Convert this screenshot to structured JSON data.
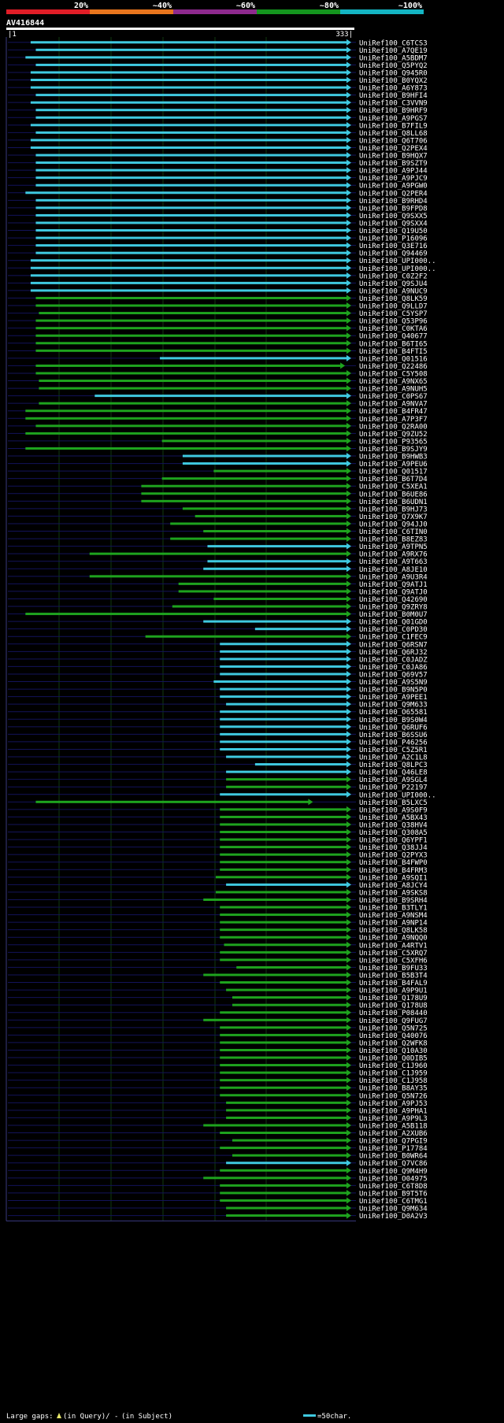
{
  "chart_data": {
    "type": "alignment-overview",
    "query_name": "AV416844",
    "query_range": [
      1,
      333
    ],
    "scale_ticks": [
      {
        "label": "20%",
        "color": "#e11d27"
      },
      {
        "label": "~40%",
        "color": "#e8751d"
      },
      {
        "label": "~60%",
        "color": "#8e2a8e"
      },
      {
        "label": "~80%",
        "color": "#14951e"
      },
      {
        "label": "~100%",
        "color": "#14b5c3"
      }
    ],
    "colors": {
      "cyan": "#3fc9e0",
      "green": "#1ea31e",
      "gap": "#e8e86b",
      "frame": "#13135a"
    },
    "hits": [
      {
        "name": "UniRef100_C6TCS3",
        "start": 23,
        "end": 333,
        "color": "cyan"
      },
      {
        "name": "UniRef100_A7QE19",
        "start": 28,
        "end": 333,
        "color": "cyan"
      },
      {
        "name": "UniRef100_A5BDM7",
        "start": 18,
        "end": 333,
        "color": "cyan"
      },
      {
        "name": "UniRef100_Q5PYQ2",
        "start": 28,
        "end": 333,
        "color": "cyan"
      },
      {
        "name": "UniRef100_Q945R0",
        "start": 23,
        "end": 333,
        "color": "cyan"
      },
      {
        "name": "UniRef100_B0YQX2",
        "start": 23,
        "end": 333,
        "color": "cyan"
      },
      {
        "name": "UniRef100_A6Y873",
        "start": 23,
        "end": 333,
        "color": "cyan"
      },
      {
        "name": "UniRef100_B9HFI4",
        "start": 28,
        "end": 333,
        "color": "cyan"
      },
      {
        "name": "UniRef100_C3VVN9",
        "start": 23,
        "end": 333,
        "color": "cyan"
      },
      {
        "name": "UniRef100_B9HRF9",
        "start": 28,
        "end": 333,
        "color": "cyan"
      },
      {
        "name": "UniRef100_A9PGS7",
        "start": 28,
        "end": 333,
        "color": "cyan"
      },
      {
        "name": "UniRef100_B7FIL9",
        "start": 23,
        "end": 333,
        "color": "cyan"
      },
      {
        "name": "UniRef100_Q8LL68",
        "start": 28,
        "end": 333,
        "color": "cyan"
      },
      {
        "name": "UniRef100_Q6T706",
        "start": 23,
        "end": 333,
        "color": "cyan"
      },
      {
        "name": "UniRef100_Q2PEX4",
        "start": 23,
        "end": 333,
        "color": "cyan"
      },
      {
        "name": "UniRef100_B9HQX7",
        "start": 28,
        "end": 333,
        "color": "cyan"
      },
      {
        "name": "UniRef100_B9SZT9",
        "start": 28,
        "end": 333,
        "color": "cyan"
      },
      {
        "name": "UniRef100_A9PJ44",
        "start": 28,
        "end": 333,
        "color": "cyan"
      },
      {
        "name": "UniRef100_A9PJC9",
        "start": 28,
        "end": 333,
        "color": "cyan"
      },
      {
        "name": "UniRef100_A9PGW0",
        "start": 28,
        "end": 333,
        "color": "cyan"
      },
      {
        "name": "UniRef100_Q2PER4",
        "start": 18,
        "end": 333,
        "color": "cyan"
      },
      {
        "name": "UniRef100_B9RHD4",
        "start": 28,
        "end": 333,
        "color": "cyan"
      },
      {
        "name": "UniRef100_B9FPD8",
        "start": 28,
        "end": 333,
        "color": "cyan"
      },
      {
        "name": "UniRef100_Q9SXX5",
        "start": 28,
        "end": 333,
        "color": "cyan"
      },
      {
        "name": "UniRef100_Q9SXX4",
        "start": 28,
        "end": 333,
        "color": "cyan"
      },
      {
        "name": "UniRef100_Q19U50",
        "start": 28,
        "end": 333,
        "color": "cyan"
      },
      {
        "name": "UniRef100_P16096",
        "start": 28,
        "end": 333,
        "color": "cyan"
      },
      {
        "name": "UniRef100_Q3E716",
        "start": 28,
        "end": 333,
        "color": "cyan"
      },
      {
        "name": "UniRef100_Q94469",
        "start": 28,
        "end": 333,
        "color": "cyan"
      },
      {
        "name": "UniRef100_UPI000..",
        "start": 23,
        "end": 333,
        "color": "cyan"
      },
      {
        "name": "UniRef100_UPI000..",
        "start": 23,
        "end": 333,
        "color": "cyan"
      },
      {
        "name": "UniRef100_C0Z2F2",
        "start": 23,
        "end": 333,
        "color": "cyan"
      },
      {
        "name": "UniRef100_Q9SJU4",
        "start": 23,
        "end": 333,
        "color": "cyan"
      },
      {
        "name": "UniRef100_A9NUC9",
        "start": 23,
        "end": 333,
        "color": "cyan"
      },
      {
        "name": "UniRef100_Q8LK59",
        "start": 28,
        "end": 333,
        "color": "green"
      },
      {
        "name": "UniRef100_Q9LLD7",
        "start": 28,
        "end": 333,
        "color": "green"
      },
      {
        "name": "UniRef100_C5YSP7",
        "start": 31,
        "end": 333,
        "color": "green"
      },
      {
        "name": "UniRef100_Q53P96",
        "start": 28,
        "end": 333,
        "color": "green"
      },
      {
        "name": "UniRef100_C0KTA6",
        "start": 28,
        "end": 333,
        "color": "green"
      },
      {
        "name": "UniRef100_Q40677",
        "start": 28,
        "end": 333,
        "color": "green"
      },
      {
        "name": "UniRef100_B6TI65",
        "start": 28,
        "end": 333,
        "color": "green"
      },
      {
        "name": "UniRef100_B4FTI5",
        "start": 28,
        "end": 333,
        "color": "green"
      },
      {
        "name": "UniRef100_Q01516",
        "start": 148,
        "end": 333,
        "color": "cyan"
      },
      {
        "name": "UniRef100_Q22486",
        "start": 28,
        "end": 327,
        "color": "green"
      },
      {
        "name": "UniRef100_C5Y508",
        "start": 28,
        "end": 333,
        "color": "green"
      },
      {
        "name": "UniRef100_A9NX65",
        "start": 31,
        "end": 333,
        "color": "green"
      },
      {
        "name": "UniRef100_A9NUH5",
        "start": 31,
        "end": 333,
        "color": "green"
      },
      {
        "name": "UniRef100_C0PS67",
        "start": 85,
        "end": 333,
        "color": "cyan"
      },
      {
        "name": "UniRef100_A9NVA7",
        "start": 31,
        "end": 333,
        "color": "green"
      },
      {
        "name": "UniRef100_B4FR47",
        "start": 18,
        "end": 333,
        "color": "green"
      },
      {
        "name": "UniRef100_A7P3F7",
        "start": 18,
        "end": 333,
        "color": "green"
      },
      {
        "name": "UniRef100_Q2RA00",
        "start": 28,
        "end": 333,
        "color": "green"
      },
      {
        "name": "UniRef100_Q9ZU52",
        "start": 18,
        "end": 333,
        "color": "green"
      },
      {
        "name": "UniRef100_P93565",
        "start": 150,
        "end": 333,
        "color": "green"
      },
      {
        "name": "UniRef100_B9SJY9",
        "start": 18,
        "end": 333,
        "color": "green"
      },
      {
        "name": "UniRef100_B9HWB3",
        "start": 170,
        "end": 333,
        "color": "cyan"
      },
      {
        "name": "UniRef100_A9PEU6",
        "start": 170,
        "end": 333,
        "color": "cyan"
      },
      {
        "name": "UniRef100_Q01517",
        "start": 200,
        "end": 333,
        "color": "green"
      },
      {
        "name": "UniRef100_B6T7D4",
        "start": 150,
        "end": 333,
        "color": "green"
      },
      {
        "name": "UniRef100_C5XEA1",
        "start": 130,
        "end": 333,
        "color": "green"
      },
      {
        "name": "UniRef100_B6UE86",
        "start": 130,
        "end": 333,
        "color": "green"
      },
      {
        "name": "UniRef100_B6UDN1",
        "start": 130,
        "end": 333,
        "color": "green"
      },
      {
        "name": "UniRef100_B9HJ73",
        "start": 170,
        "end": 333,
        "color": "green"
      },
      {
        "name": "UniRef100_Q7X9K7",
        "start": 182,
        "end": 333,
        "color": "green"
      },
      {
        "name": "UniRef100_Q94JJ0",
        "start": 158,
        "end": 333,
        "color": "green"
      },
      {
        "name": "UniRef100_C6TIN0",
        "start": 190,
        "end": 333,
        "color": "green"
      },
      {
        "name": "UniRef100_B8EZ83",
        "start": 158,
        "end": 333,
        "color": "green"
      },
      {
        "name": "UniRef100_A9TPN5",
        "start": 194,
        "end": 333,
        "color": "cyan"
      },
      {
        "name": "UniRef100_A9RX76",
        "start": 80,
        "end": 333,
        "color": "green"
      },
      {
        "name": "UniRef100_A9T663",
        "start": 194,
        "end": 333,
        "color": "cyan"
      },
      {
        "name": "UniRef100_A8JE10",
        "start": 190,
        "end": 333,
        "color": "cyan"
      },
      {
        "name": "UniRef100_A9U3R4",
        "start": 80,
        "end": 333,
        "color": "green"
      },
      {
        "name": "UniRef100_Q9ATJ1",
        "start": 166,
        "end": 333,
        "color": "green"
      },
      {
        "name": "UniRef100_Q9ATJ0",
        "start": 166,
        "end": 333,
        "color": "green"
      },
      {
        "name": "UniRef100_Q42690",
        "start": 200,
        "end": 333,
        "color": "green"
      },
      {
        "name": "UniRef100_Q9ZRY8",
        "start": 160,
        "end": 333,
        "color": "green"
      },
      {
        "name": "UniRef100_B0M0U7",
        "start": 18,
        "end": 333,
        "color": "green"
      },
      {
        "name": "UniRef100_Q01GD0",
        "start": 190,
        "end": 333,
        "color": "cyan"
      },
      {
        "name": "UniRef100_C0PD30",
        "start": 240,
        "end": 333,
        "color": "cyan"
      },
      {
        "name": "UniRef100_C1FEC9",
        "start": 134,
        "end": 333,
        "color": "green"
      },
      {
        "name": "UniRef100_Q6RSN7",
        "start": 206,
        "end": 333,
        "color": "cyan"
      },
      {
        "name": "UniRef100_Q6RJ32",
        "start": 206,
        "end": 333,
        "color": "cyan"
      },
      {
        "name": "UniRef100_C0JADZ",
        "start": 206,
        "end": 333,
        "color": "cyan"
      },
      {
        "name": "UniRef100_C0JA86",
        "start": 206,
        "end": 333,
        "color": "cyan"
      },
      {
        "name": "UniRef100_Q69V57",
        "start": 206,
        "end": 333,
        "color": "cyan"
      },
      {
        "name": "UniRef100_A9S5N9",
        "start": 200,
        "end": 333,
        "color": "cyan"
      },
      {
        "name": "UniRef100_B9N5P0",
        "start": 206,
        "end": 333,
        "color": "cyan"
      },
      {
        "name": "UniRef100_A9PEE1",
        "start": 206,
        "end": 333,
        "color": "cyan"
      },
      {
        "name": "UniRef100_Q9M633",
        "start": 212,
        "end": 333,
        "color": "cyan"
      },
      {
        "name": "UniRef100_O65581",
        "start": 206,
        "end": 333,
        "color": "cyan"
      },
      {
        "name": "UniRef100_B9S0W4",
        "start": 206,
        "end": 333,
        "color": "cyan"
      },
      {
        "name": "UniRef100_Q6RUF6",
        "start": 206,
        "end": 333,
        "color": "cyan"
      },
      {
        "name": "UniRef100_B6SSU6",
        "start": 206,
        "end": 333,
        "color": "cyan"
      },
      {
        "name": "UniRef100_P46256",
        "start": 206,
        "end": 333,
        "color": "cyan"
      },
      {
        "name": "UniRef100_C5Z5R1",
        "start": 206,
        "end": 333,
        "color": "cyan"
      },
      {
        "name": "UniRef100_A2C1L8",
        "start": 212,
        "end": 333,
        "color": "cyan"
      },
      {
        "name": "UniRef100_Q8LPC3",
        "start": 240,
        "end": 333,
        "color": "cyan"
      },
      {
        "name": "UniRef100_Q46LE8",
        "start": 212,
        "end": 333,
        "color": "cyan"
      },
      {
        "name": "UniRef100_A9SGL4",
        "start": 212,
        "end": 333,
        "color": "green"
      },
      {
        "name": "UniRef100_P22197",
        "start": 212,
        "end": 333,
        "color": "green"
      },
      {
        "name": "UniRef100_UPI000..",
        "start": 206,
        "end": 333,
        "color": "cyan"
      },
      {
        "name": "UniRef100_B5LXC5",
        "start": 28,
        "end": 296,
        "color": "green"
      },
      {
        "name": "UniRef100_A9S0F9",
        "start": 206,
        "end": 333,
        "color": "green"
      },
      {
        "name": "UniRef100_A5BX43",
        "start": 206,
        "end": 333,
        "color": "green"
      },
      {
        "name": "UniRef100_Q38HV4",
        "start": 206,
        "end": 333,
        "color": "green"
      },
      {
        "name": "UniRef100_Q308A5",
        "start": 206,
        "end": 333,
        "color": "green"
      },
      {
        "name": "UniRef100_Q6YPF1",
        "start": 206,
        "end": 333,
        "color": "green"
      },
      {
        "name": "UniRef100_Q38JJ4",
        "start": 206,
        "end": 333,
        "color": "green"
      },
      {
        "name": "UniRef100_Q2PYX3",
        "start": 206,
        "end": 333,
        "color": "green"
      },
      {
        "name": "UniRef100_B4FWP0",
        "start": 206,
        "end": 333,
        "color": "green"
      },
      {
        "name": "UniRef100_B4FRM3",
        "start": 206,
        "end": 333,
        "color": "green"
      },
      {
        "name": "UniRef100_A9SQI1",
        "start": 202,
        "end": 333,
        "color": "green"
      },
      {
        "name": "UniRef100_A8JCY4",
        "start": 212,
        "end": 333,
        "color": "cyan"
      },
      {
        "name": "UniRef100_A9SKS8",
        "start": 202,
        "end": 333,
        "color": "green"
      },
      {
        "name": "UniRef100_B9SRH4",
        "start": 190,
        "end": 333,
        "color": "green"
      },
      {
        "name": "UniRef100_B3TLY1",
        "start": 206,
        "end": 333,
        "color": "green"
      },
      {
        "name": "UniRef100_A9NSM4",
        "start": 206,
        "end": 333,
        "color": "green"
      },
      {
        "name": "UniRef100_A9NP14",
        "start": 206,
        "end": 333,
        "color": "green"
      },
      {
        "name": "UniRef100_Q8LK58",
        "start": 206,
        "end": 333,
        "color": "green"
      },
      {
        "name": "UniRef100_A9NQQ0",
        "start": 206,
        "end": 333,
        "color": "green"
      },
      {
        "name": "UniRef100_A4RTV1",
        "start": 210,
        "end": 333,
        "color": "green"
      },
      {
        "name": "UniRef100_C5XRQ7",
        "start": 206,
        "end": 333,
        "color": "green"
      },
      {
        "name": "UniRef100_C5XFH6",
        "start": 206,
        "end": 333,
        "color": "green"
      },
      {
        "name": "UniRef100_B9FU33",
        "start": 222,
        "end": 333,
        "color": "green"
      },
      {
        "name": "UniRef100_B5B3T4",
        "start": 190,
        "end": 333,
        "color": "green"
      },
      {
        "name": "UniRef100_B4FAL9",
        "start": 206,
        "end": 333,
        "color": "green"
      },
      {
        "name": "UniRef100_A9P9U1",
        "start": 212,
        "end": 333,
        "color": "green"
      },
      {
        "name": "UniRef100_Q178U9",
        "start": 218,
        "end": 333,
        "color": "green"
      },
      {
        "name": "UniRef100_Q178U8",
        "start": 218,
        "end": 333,
        "color": "green"
      },
      {
        "name": "UniRef100_P08440",
        "start": 206,
        "end": 333,
        "color": "green"
      },
      {
        "name": "UniRef100_Q9FUG7",
        "start": 190,
        "end": 333,
        "color": "green"
      },
      {
        "name": "UniRef100_Q5N725",
        "start": 206,
        "end": 333,
        "color": "green"
      },
      {
        "name": "UniRef100_Q40076",
        "start": 206,
        "end": 333,
        "color": "green"
      },
      {
        "name": "UniRef100_Q2WFK8",
        "start": 206,
        "end": 333,
        "color": "green"
      },
      {
        "name": "UniRef100_Q10A30",
        "start": 206,
        "end": 333,
        "color": "green"
      },
      {
        "name": "UniRef100_Q0DIB5",
        "start": 206,
        "end": 333,
        "color": "green"
      },
      {
        "name": "UniRef100_C1J960",
        "start": 206,
        "end": 333,
        "color": "green"
      },
      {
        "name": "UniRef100_C1J959",
        "start": 206,
        "end": 333,
        "color": "green"
      },
      {
        "name": "UniRef100_C1J958",
        "start": 206,
        "end": 333,
        "color": "green"
      },
      {
        "name": "UniRef100_B8AY35",
        "start": 206,
        "end": 333,
        "color": "green"
      },
      {
        "name": "UniRef100_Q5N726",
        "start": 206,
        "end": 333,
        "color": "green"
      },
      {
        "name": "UniRef100_A9PJ53",
        "start": 212,
        "end": 333,
        "color": "green"
      },
      {
        "name": "UniRef100_A9PHA1",
        "start": 212,
        "end": 333,
        "color": "green"
      },
      {
        "name": "UniRef100_A9P9L3",
        "start": 212,
        "end": 333,
        "color": "green"
      },
      {
        "name": "UniRef100_A5B118",
        "start": 190,
        "end": 333,
        "color": "green"
      },
      {
        "name": "UniRef100_A2XUB6",
        "start": 206,
        "end": 333,
        "color": "green"
      },
      {
        "name": "UniRef100_Q7PGI9",
        "start": 218,
        "end": 333,
        "color": "green"
      },
      {
        "name": "UniRef100_P17784",
        "start": 206,
        "end": 333,
        "color": "green"
      },
      {
        "name": "UniRef100_B0WR64",
        "start": 218,
        "end": 333,
        "color": "green"
      },
      {
        "name": "UniRef100_Q7VC86",
        "start": 212,
        "end": 333,
        "color": "cyan"
      },
      {
        "name": "UniRef100_Q9M4H9",
        "start": 206,
        "end": 333,
        "color": "green"
      },
      {
        "name": "UniRef100_O04975",
        "start": 190,
        "end": 333,
        "color": "green"
      },
      {
        "name": "UniRef100_C6T8D8",
        "start": 206,
        "end": 333,
        "color": "green"
      },
      {
        "name": "UniRef100_B9T5T6",
        "start": 206,
        "end": 333,
        "color": "green"
      },
      {
        "name": "UniRef100_C6TMG1",
        "start": 206,
        "end": 333,
        "color": "green"
      },
      {
        "name": "UniRef100_Q9M634",
        "start": 212,
        "end": 333,
        "color": "green"
      },
      {
        "name": "UniRef100_D0A2V3",
        "start": 212,
        "end": 333,
        "color": "green"
      }
    ],
    "legend": {
      "large_gaps_label": "Large gaps:",
      "in_query_label": "(in Query)/",
      "in_subject_dash": "-",
      "in_subject_label": "(in Subject)",
      "scale_label": "=50char."
    }
  }
}
